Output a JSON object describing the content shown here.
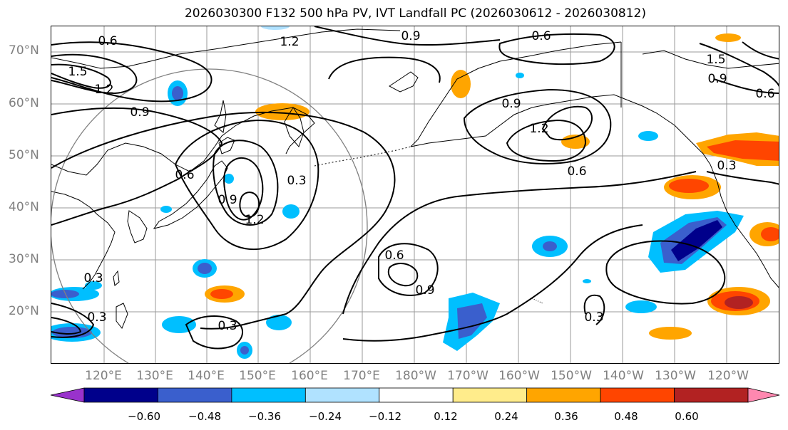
{
  "title": "2026030300 F132 500 hPa PV, IVT Landfall PC (2026030612 - 2026030812)",
  "lat_labels": [
    "70°N",
    "60°N",
    "50°N",
    "40°N",
    "30°N",
    "20°N"
  ],
  "lon_labels": [
    "120°E",
    "130°E",
    "140°E",
    "150°E",
    "160°E",
    "170°E",
    "180°W",
    "170°W",
    "160°W",
    "150°W",
    "140°W",
    "130°W",
    "120°W"
  ],
  "contour_labels": [
    "0.6",
    "1.2",
    "0.9",
    "0.6",
    "1.5",
    "1.2",
    "0.9",
    "0.9",
    "1.2",
    "0.6",
    "0.3",
    "0.9",
    "1.2",
    "0.3",
    "0.6",
    "0.9",
    "0.3",
    "0.3",
    "0.6",
    "0.3",
    "1.5",
    "0.9",
    "0.6",
    "0.3"
  ],
  "colorbar": {
    "ticks": [
      "−0.60",
      "−0.48",
      "−0.36",
      "−0.24",
      "−0.12",
      "0.12",
      "0.24",
      "0.36",
      "0.48",
      "0.60"
    ],
    "colors": [
      "#9932CC",
      "#00008B",
      "#3A5FCD",
      "#00BFFF",
      "#B0E2FF",
      "#FFFFFF",
      "#FFEC8B",
      "#FFA500",
      "#FF4500",
      "#B22222",
      "#FF88B0"
    ]
  }
}
